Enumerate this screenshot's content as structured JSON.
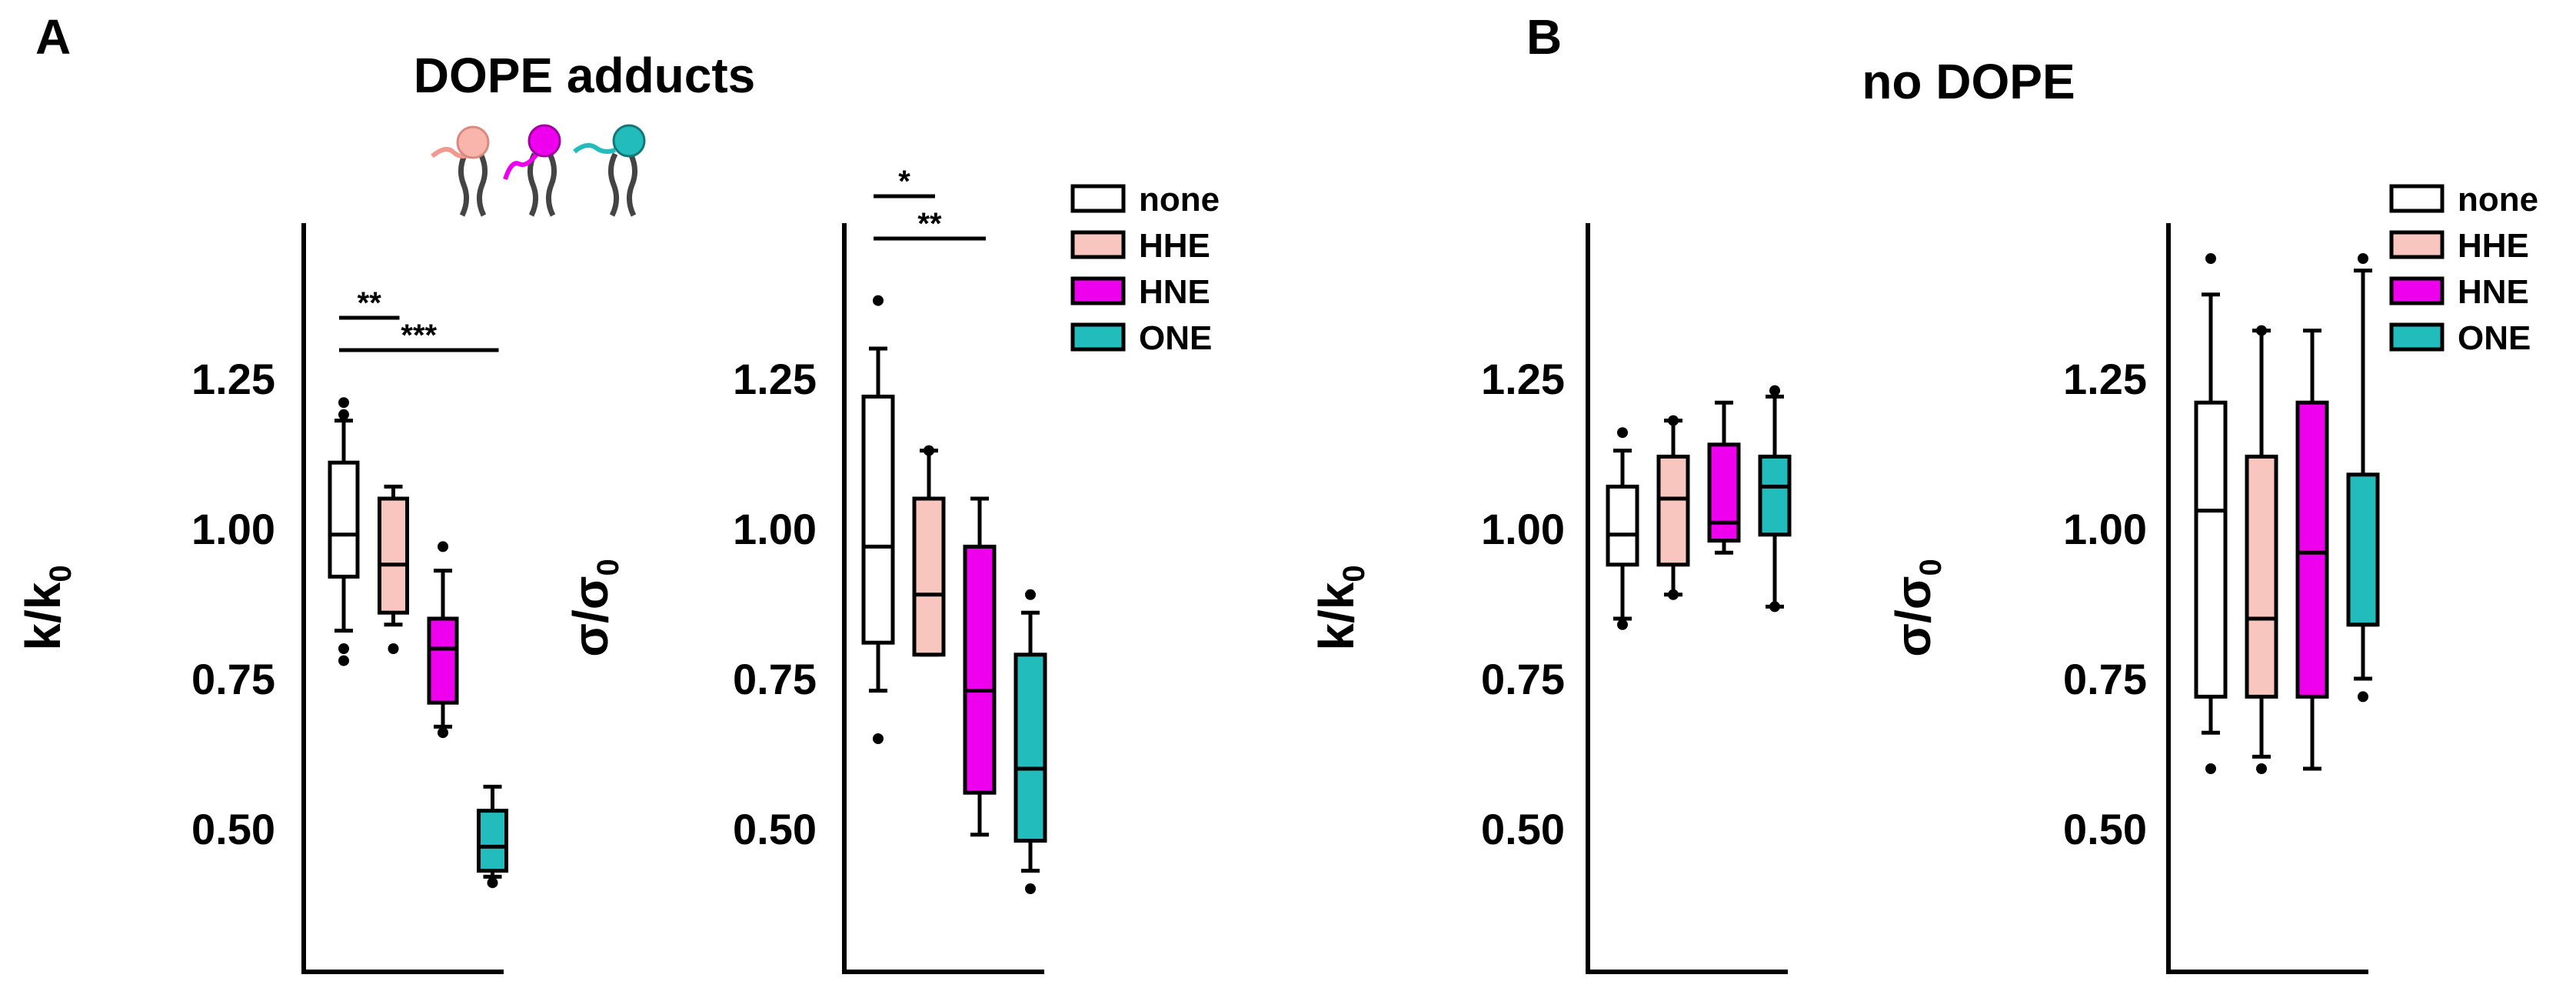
{
  "figure": {
    "panels": [
      {
        "letter": "A",
        "title": "DOPE adducts"
      },
      {
        "letter": "B",
        "title": "no DOPE"
      }
    ]
  },
  "legend": {
    "entries": [
      {
        "label": "none",
        "color": "#ffffff"
      },
      {
        "label": "HHE",
        "color": "#f9c6bf"
      },
      {
        "label": "HNE",
        "color": "#ee00ee"
      },
      {
        "label": "ONE",
        "color": "#22bcbc"
      }
    ]
  },
  "chart_data": [
    {
      "type": "box",
      "panel": "A",
      "title": "DOPE adducts",
      "ylabel": "k/k0",
      "ylabel_main": "k/k",
      "ylabel_sub": "0",
      "ylim": [
        0.3,
        1.5
      ],
      "yticks": [
        "0.50",
        "0.75",
        "1.00",
        "1.25"
      ],
      "ytick_values": [
        0.5,
        0.75,
        1.0,
        1.25
      ],
      "categories": [
        "none",
        "HHE",
        "HNE",
        "ONE"
      ],
      "boxes": [
        {
          "name": "none",
          "whisker_low": 0.83,
          "q1": 0.92,
          "median": 0.99,
          "q3": 1.11,
          "whisker_high": 1.18,
          "outliers": [
            0.78,
            0.8,
            1.19,
            1.21
          ]
        },
        {
          "name": "HHE",
          "whisker_low": 0.84,
          "q1": 0.86,
          "median": 0.94,
          "q3": 1.05,
          "whisker_high": 1.07,
          "outliers": [
            0.8
          ]
        },
        {
          "name": "HNE",
          "whisker_low": 0.67,
          "q1": 0.71,
          "median": 0.8,
          "q3": 0.85,
          "whisker_high": 0.93,
          "outliers": [
            0.66,
            0.97
          ]
        },
        {
          "name": "ONE",
          "whisker_low": 0.42,
          "q1": 0.43,
          "median": 0.47,
          "q3": 0.53,
          "whisker_high": 0.57,
          "outliers": [
            0.41
          ]
        }
      ],
      "significance": [
        {
          "label": "**",
          "from": 0,
          "to": 1
        },
        {
          "label": "***",
          "from": 0,
          "to": 3
        }
      ]
    },
    {
      "type": "box",
      "panel": "A",
      "title": "",
      "ylabel": "σ/σ0",
      "ylabel_main": "σ/σ",
      "ylabel_sub": "0",
      "ylim": [
        0.3,
        1.5
      ],
      "yticks": [
        "0.50",
        "0.75",
        "1.00",
        "1.25"
      ],
      "ytick_values": [
        0.5,
        0.75,
        1.0,
        1.25
      ],
      "categories": [
        "none",
        "HHE",
        "HNE",
        "ONE"
      ],
      "boxes": [
        {
          "name": "none",
          "whisker_low": 0.73,
          "q1": 0.81,
          "median": 0.97,
          "q3": 1.22,
          "whisker_high": 1.3,
          "outliers": [
            0.65,
            1.38
          ]
        },
        {
          "name": "HHE",
          "whisker_low": 0.79,
          "q1": 0.79,
          "median": 0.89,
          "q3": 1.05,
          "whisker_high": 1.13,
          "outliers": [
            1.13
          ]
        },
        {
          "name": "HNE",
          "whisker_low": 0.49,
          "q1": 0.56,
          "median": 0.73,
          "q3": 0.97,
          "whisker_high": 1.05,
          "outliers": []
        },
        {
          "name": "ONE",
          "whisker_low": 0.43,
          "q1": 0.48,
          "median": 0.6,
          "q3": 0.79,
          "whisker_high": 0.86,
          "outliers": [
            0.4,
            0.89
          ]
        }
      ],
      "significance": [
        {
          "label": "*",
          "from": 0,
          "to": 1
        },
        {
          "label": "**",
          "from": 0,
          "to": 2
        }
      ]
    },
    {
      "type": "box",
      "panel": "B",
      "title": "no DOPE",
      "ylabel": "k/k0",
      "ylabel_main": "k/k",
      "ylabel_sub": "0",
      "ylim": [
        0.3,
        1.5
      ],
      "yticks": [
        "0.50",
        "0.75",
        "1.00",
        "1.25"
      ],
      "ytick_values": [
        0.5,
        0.75,
        1.0,
        1.25
      ],
      "categories": [
        "none",
        "HHE",
        "HNE",
        "ONE"
      ],
      "boxes": [
        {
          "name": "none",
          "whisker_low": 0.85,
          "q1": 0.94,
          "median": 0.99,
          "q3": 1.07,
          "whisker_high": 1.13,
          "outliers": [
            0.84,
            1.16
          ]
        },
        {
          "name": "HHE",
          "whisker_low": 0.89,
          "q1": 0.94,
          "median": 1.05,
          "q3": 1.12,
          "whisker_high": 1.18,
          "outliers": [
            0.89,
            1.18
          ]
        },
        {
          "name": "HNE",
          "whisker_low": 0.96,
          "q1": 0.98,
          "median": 1.01,
          "q3": 1.14,
          "whisker_high": 1.21,
          "outliers": []
        },
        {
          "name": "ONE",
          "whisker_low": 0.87,
          "q1": 0.99,
          "median": 1.07,
          "q3": 1.12,
          "whisker_high": 1.22,
          "outliers": [
            0.87,
            1.23
          ]
        }
      ],
      "significance": []
    },
    {
      "type": "box",
      "panel": "B",
      "title": "",
      "ylabel": "σ/σ0",
      "ylabel_main": "σ/σ",
      "ylabel_sub": "0",
      "ylim": [
        0.3,
        1.5
      ],
      "yticks": [
        "0.50",
        "0.75",
        "1.00",
        "1.25"
      ],
      "ytick_values": [
        0.5,
        0.75,
        1.0,
        1.25
      ],
      "categories": [
        "none",
        "HHE",
        "HNE",
        "ONE"
      ],
      "boxes": [
        {
          "name": "none",
          "whisker_low": 0.66,
          "q1": 0.72,
          "median": 1.03,
          "q3": 1.21,
          "whisker_high": 1.39,
          "outliers": [
            0.6,
            1.45
          ]
        },
        {
          "name": "HHE",
          "whisker_low": 0.62,
          "q1": 0.72,
          "median": 0.85,
          "q3": 1.12,
          "whisker_high": 1.33,
          "outliers": [
            0.6,
            1.33
          ]
        },
        {
          "name": "HNE",
          "whisker_low": 0.6,
          "q1": 0.72,
          "median": 0.96,
          "q3": 1.21,
          "whisker_high": 1.33,
          "outliers": []
        },
        {
          "name": "ONE",
          "whisker_low": 0.75,
          "q1": 0.84,
          "median": 0.84,
          "q3": 1.09,
          "whisker_high": 1.43,
          "outliers": [
            0.72,
            1.45
          ]
        }
      ],
      "significance": []
    }
  ]
}
